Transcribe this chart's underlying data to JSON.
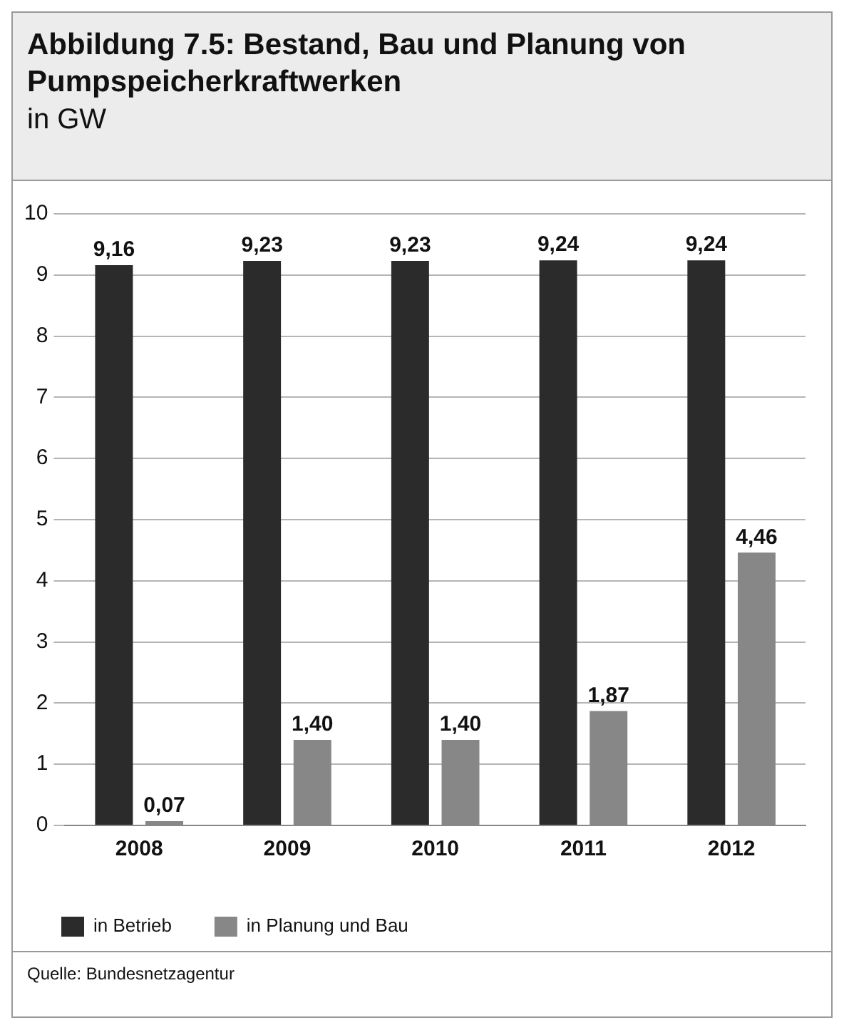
{
  "chart_data": {
    "type": "bar",
    "title": "Abbildung 7.5: Bestand, Bau und Planung von Pumpspeicherkraftwerken",
    "subtitle": "in GW",
    "categories": [
      "2008",
      "2009",
      "2010",
      "2011",
      "2012"
    ],
    "series": [
      {
        "name": "in Betrieb",
        "color": "#2b2b2b",
        "values": [
          9.16,
          9.23,
          9.23,
          9.24,
          9.24
        ],
        "value_labels": [
          "9,16",
          "9,23",
          "9,23",
          "9,24",
          "9,24"
        ]
      },
      {
        "name": "in Planung und Bau",
        "color": "#878787",
        "values": [
          0.07,
          1.4,
          1.4,
          1.87,
          4.46
        ],
        "value_labels": [
          "0,07",
          "1,40",
          "1,40",
          "1,87",
          "4,46"
        ]
      }
    ],
    "ylim": [
      0,
      10
    ],
    "yticks": [
      0,
      1,
      2,
      3,
      4,
      5,
      6,
      7,
      8,
      9,
      10
    ],
    "grid": "y",
    "legend": "bottom left",
    "annotations": [
      "Quelle: Bundesnetzagentur"
    ]
  }
}
